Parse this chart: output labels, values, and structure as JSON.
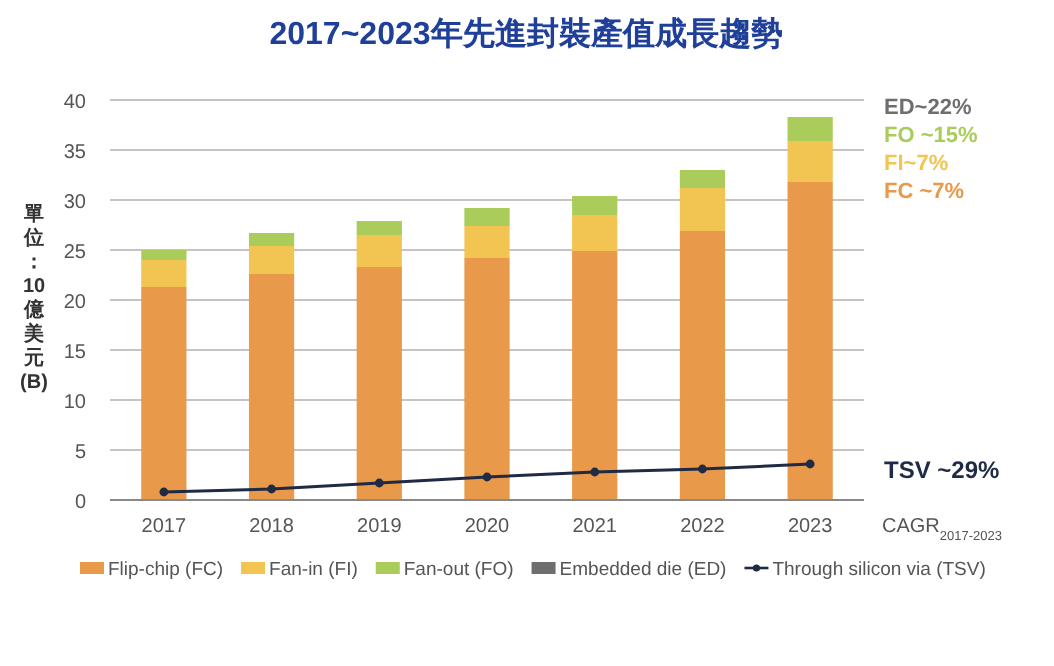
{
  "chart_data": {
    "type": "bar",
    "stacked": true,
    "title": "2017~2023年先進封裝產值成長趨勢",
    "ylabel": "單位：10億美元(B)",
    "categories": [
      "2017",
      "2018",
      "2019",
      "2020",
      "2021",
      "2022",
      "2023"
    ],
    "series": [
      {
        "name": "Flip-chip (FC)",
        "color": "#e8994a",
        "values": [
          21.3,
          22.6,
          23.3,
          24.2,
          24.9,
          26.9,
          31.8
        ]
      },
      {
        "name": "Fan-in (FI)",
        "color": "#f2c452",
        "values": [
          2.7,
          2.8,
          3.2,
          3.2,
          3.6,
          4.3,
          4.1
        ]
      },
      {
        "name": "Fan-out (FO)",
        "color": "#a9cc5a",
        "values": [
          1.0,
          1.3,
          1.4,
          1.8,
          1.9,
          1.8,
          2.4
        ]
      },
      {
        "name": "Embedded die (ED)",
        "color": "#6e6e6e",
        "values": [
          null,
          null,
          null,
          null,
          null,
          null,
          null
        ]
      },
      {
        "name": "Through silicon via (TSV)",
        "type": "line",
        "color": "#1f2a44",
        "marker": "circle",
        "values": [
          0.8,
          1.1,
          1.7,
          2.3,
          2.8,
          3.1,
          3.6
        ]
      }
    ],
    "ylim": [
      0,
      40
    ],
    "yticks": [
      0,
      5,
      10,
      15,
      20,
      25,
      30,
      35,
      40
    ],
    "grid": "y",
    "legend": "bottom",
    "annotations": [
      "ED~22%",
      "FO ~15%",
      "FI~7%",
      "FC ~7%",
      "TSV ~29%",
      "CAGR$_{2017-2023}$"
    ]
  }
}
